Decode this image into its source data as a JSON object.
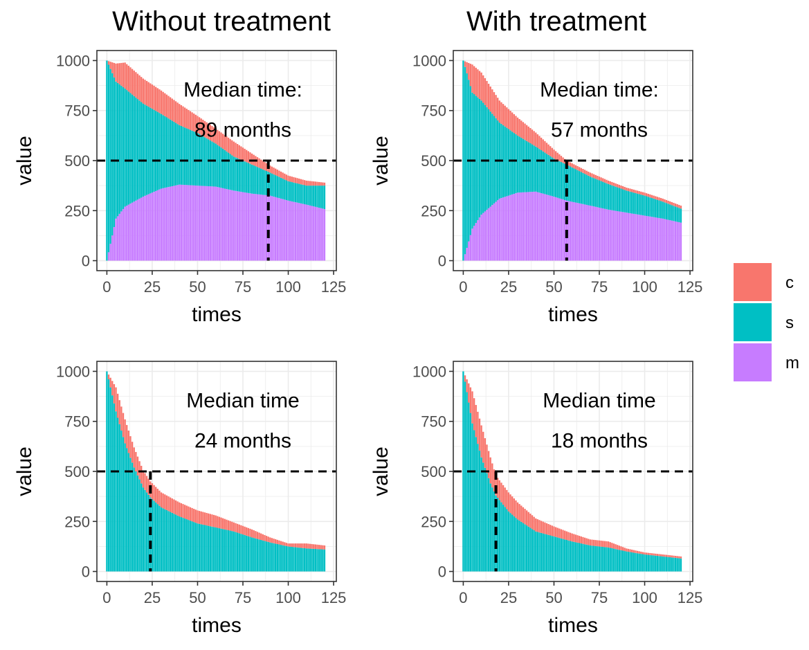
{
  "column_titles": [
    "Without treatment",
    "With treatment"
  ],
  "legend": [
    {
      "key": "c",
      "color": "#F8766D"
    },
    {
      "key": "s",
      "color": "#00BFC4"
    },
    {
      "key": "m",
      "color": "#C77CFF"
    }
  ],
  "chart_data": [
    {
      "type": "bar",
      "stacked": true,
      "column_title": "Without treatment",
      "xlabel": "times",
      "ylabel": "value",
      "xlim": [
        0,
        125
      ],
      "ylim": [
        0,
        1000
      ],
      "xticks": [
        0,
        25,
        50,
        75,
        100,
        125
      ],
      "yticks": [
        0,
        250,
        500,
        750,
        1000
      ],
      "grid": true,
      "x": [
        0,
        5,
        10,
        20,
        30,
        40,
        50,
        60,
        70,
        80,
        90,
        100,
        110,
        120
      ],
      "series": [
        {
          "name": "m",
          "values": [
            0,
            210,
            270,
            320,
            360,
            380,
            375,
            370,
            350,
            335,
            325,
            300,
            280,
            258
          ]
        },
        {
          "name": "s",
          "values": [
            1000,
            685,
            590,
            465,
            373,
            297,
            263,
            215,
            170,
            145,
            115,
            97,
            95,
            117
          ]
        },
        {
          "name": "c",
          "values": [
            0,
            90,
            130,
            125,
            117,
            106,
            85,
            75,
            75,
            55,
            35,
            28,
            25,
            15
          ]
        }
      ],
      "reference_line": {
        "y": 500,
        "style": "dashed"
      },
      "median_line": {
        "x": 89,
        "style": "dashed"
      },
      "annotation": [
        "Median time:",
        "89 months"
      ]
    },
    {
      "type": "bar",
      "stacked": true,
      "column_title": "With treatment",
      "xlabel": "times",
      "ylabel": "value",
      "xlim": [
        0,
        125
      ],
      "ylim": [
        0,
        1000
      ],
      "xticks": [
        0,
        25,
        50,
        75,
        100,
        125
      ],
      "yticks": [
        0,
        250,
        500,
        750,
        1000
      ],
      "grid": true,
      "x": [
        0,
        5,
        10,
        20,
        30,
        40,
        50,
        57,
        70,
        80,
        90,
        100,
        110,
        120
      ],
      "series": [
        {
          "name": "m",
          "values": [
            0,
            160,
            230,
            310,
            340,
            345,
            320,
            300,
            275,
            255,
            240,
            225,
            210,
            190
          ]
        },
        {
          "name": "s",
          "values": [
            1000,
            680,
            570,
            380,
            285,
            225,
            190,
            180,
            145,
            128,
            110,
            100,
            85,
            70
          ]
        },
        {
          "name": "c",
          "values": [
            0,
            140,
            140,
            110,
            90,
            70,
            45,
            20,
            20,
            17,
            15,
            15,
            15,
            15
          ]
        }
      ],
      "reference_line": {
        "y": 500,
        "style": "dashed"
      },
      "median_line": {
        "x": 57,
        "style": "dashed"
      },
      "annotation": [
        "Median time:",
        "57 months"
      ]
    },
    {
      "type": "bar",
      "stacked": true,
      "column_title": "Without treatment",
      "xlabel": "times",
      "ylabel": "value",
      "xlim": [
        0,
        125
      ],
      "ylim": [
        0,
        1000
      ],
      "xticks": [
        0,
        25,
        50,
        75,
        100,
        125
      ],
      "yticks": [
        0,
        250,
        500,
        750,
        1000
      ],
      "grid": true,
      "x": [
        0,
        5,
        10,
        15,
        20,
        24,
        30,
        40,
        50,
        60,
        70,
        80,
        90,
        100,
        110,
        120
      ],
      "series": [
        {
          "name": "s",
          "values": [
            1000,
            800,
            640,
            520,
            420,
            370,
            320,
            275,
            240,
            220,
            200,
            170,
            145,
            125,
            115,
            110
          ]
        },
        {
          "name": "c",
          "values": [
            0,
            120,
            120,
            100,
            85,
            80,
            75,
            70,
            65,
            60,
            45,
            40,
            25,
            15,
            25,
            20
          ]
        }
      ],
      "reference_line": {
        "y": 500,
        "style": "dashed"
      },
      "median_line": {
        "x": 24,
        "style": "dashed"
      },
      "annotation": [
        "Median time",
        "24 months"
      ]
    },
    {
      "type": "bar",
      "stacked": true,
      "column_title": "With treatment",
      "xlabel": "times",
      "ylabel": "value",
      "xlim": [
        0,
        125
      ],
      "ylim": [
        0,
        1000
      ],
      "xticks": [
        0,
        25,
        50,
        75,
        100,
        125
      ],
      "yticks": [
        0,
        250,
        500,
        750,
        1000
      ],
      "grid": true,
      "x": [
        0,
        5,
        10,
        15,
        18,
        25,
        30,
        40,
        50,
        60,
        70,
        80,
        90,
        100,
        110,
        120
      ],
      "series": [
        {
          "name": "s",
          "values": [
            1000,
            740,
            570,
            440,
            380,
            300,
            260,
            200,
            175,
            150,
            130,
            120,
            100,
            85,
            75,
            65
          ]
        },
        {
          "name": "c",
          "values": [
            0,
            160,
            160,
            130,
            100,
            95,
            85,
            65,
            50,
            40,
            30,
            30,
            15,
            10,
            10,
            10
          ]
        }
      ],
      "reference_line": {
        "y": 500,
        "style": "dashed"
      },
      "median_line": {
        "x": 18,
        "style": "dashed"
      },
      "annotation": [
        "Median time",
        "18 months"
      ]
    }
  ]
}
